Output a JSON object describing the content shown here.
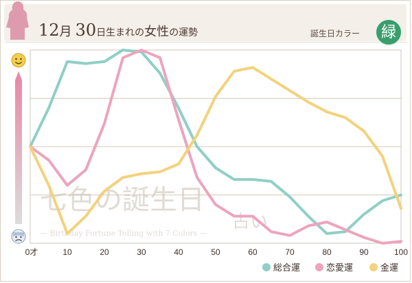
{
  "header": {
    "month": "12",
    "month_unit": "月",
    "day": "30",
    "suffix_small": "日生まれの",
    "suffix_big": "女性",
    "suffix_small2": "の運勢",
    "birth_color_label": "誕生日カラー",
    "birth_color_char": "緑",
    "birth_color_hex": "#3a9e6b"
  },
  "watermark": {
    "logo_text": "七色の誕生日",
    "logo_sub": "占い",
    "tagline": "— Birthday Fortune Telling with 7 Colors —"
  },
  "icons": {
    "top": "happy-face-icon",
    "bottom": "sad-face-icon"
  },
  "chart_data": {
    "type": "line",
    "x_tick_labels": [
      "0才",
      "10",
      "20",
      "30",
      "40",
      "50",
      "60",
      "70",
      "80",
      "90",
      "100"
    ],
    "xlim": [
      0,
      100
    ],
    "ylim": [
      0,
      100
    ],
    "grid": "horizontal",
    "legend_position": "bottom-right",
    "series": [
      {
        "name": "総合運",
        "color": "#8fcfc6",
        "x": [
          0,
          5,
          10,
          15,
          20,
          25,
          30,
          35,
          40,
          45,
          50,
          55,
          60,
          65,
          70,
          75,
          80,
          85,
          90,
          95,
          100
        ],
        "y": [
          50,
          70,
          94,
          93,
          94,
          100,
          99,
          88,
          70,
          50,
          39,
          33,
          33,
          32,
          24,
          14,
          5,
          6,
          15,
          22,
          25
        ]
      },
      {
        "name": "恋愛運",
        "color": "#eda4bd",
        "x": [
          0,
          5,
          10,
          15,
          20,
          25,
          30,
          35,
          40,
          45,
          50,
          55,
          60,
          65,
          70,
          75,
          80,
          85,
          90,
          95,
          100
        ],
        "y": [
          50,
          43,
          30,
          38,
          62,
          96,
          100,
          96,
          64,
          34,
          20,
          14,
          14,
          6,
          4,
          9,
          11,
          7,
          3,
          0,
          1
        ]
      },
      {
        "name": "金運",
        "color": "#f3d27c",
        "x": [
          0,
          5,
          10,
          15,
          20,
          25,
          30,
          35,
          40,
          45,
          50,
          55,
          60,
          65,
          70,
          75,
          80,
          85,
          90,
          95,
          100
        ],
        "y": [
          50,
          30,
          5,
          14,
          27,
          34,
          36,
          37,
          41,
          56,
          76,
          89,
          91,
          85,
          79,
          73,
          68,
          65,
          58,
          45,
          18
        ]
      }
    ]
  }
}
